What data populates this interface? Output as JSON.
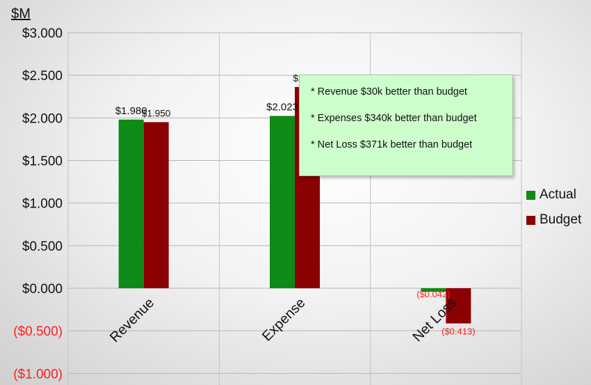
{
  "chart_data": {
    "type": "bar",
    "ylabel": "$M",
    "categories": [
      "Revenue",
      "Expense",
      "Net Loss"
    ],
    "ylim": [
      -1.0,
      3.0
    ],
    "yticks": [
      {
        "value": 3.0,
        "label": "$3.000"
      },
      {
        "value": 2.5,
        "label": "$2.500"
      },
      {
        "value": 2.0,
        "label": "$2.000"
      },
      {
        "value": 1.5,
        "label": "$1.500"
      },
      {
        "value": 1.0,
        "label": "$1.000"
      },
      {
        "value": 0.5,
        "label": "$0.500"
      },
      {
        "value": 0.0,
        "label": "$0.000"
      },
      {
        "value": -0.5,
        "label": "($0.500)"
      },
      {
        "value": -1.0,
        "label": "($1.000)"
      }
    ],
    "series": [
      {
        "name": "Actual",
        "color": "#0e8a16",
        "values": [
          1.98,
          2.023,
          -0.042
        ],
        "labels": [
          "$1.980",
          "$2.023",
          "($0.042)"
        ]
      },
      {
        "name": "Budget",
        "color": "#8b0000",
        "values": [
          1.95,
          2.363,
          -0.413
        ],
        "labels": [
          "$1.950",
          "$2.363",
          "($0.413)"
        ]
      }
    ],
    "grid": true,
    "legend": "right",
    "negative_color": "#ff2020"
  },
  "annotation": {
    "lines": [
      "* Revenue  $30k better than budget",
      "* Expenses $340k better than budget",
      "* Net Loss $371k better than budget"
    ]
  }
}
